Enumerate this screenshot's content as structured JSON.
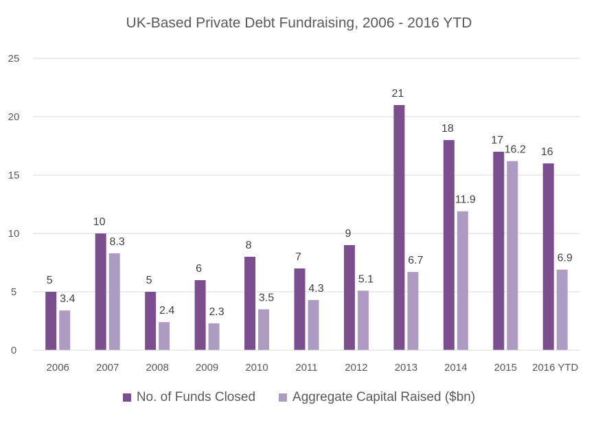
{
  "chart_data": {
    "type": "bar",
    "title": "UK-Based Private Debt Fundraising, 2006 - 2016 YTD",
    "xlabel": "",
    "ylabel": "",
    "categories": [
      "2006",
      "2007",
      "2008",
      "2009",
      "2010",
      "2011",
      "2012",
      "2013",
      "2014",
      "2015",
      "2016 YTD"
    ],
    "series": [
      {
        "name": "No. of Funds Closed",
        "color": "#7b4f8e",
        "values": [
          5,
          10,
          5,
          6,
          8,
          7,
          9,
          21,
          18,
          17,
          16
        ]
      },
      {
        "name": "Aggregate Capital Raised ($bn)",
        "color": "#ad9bc2",
        "values": [
          3.4,
          8.3,
          2.4,
          2.3,
          3.5,
          4.3,
          5.1,
          6.7,
          11.9,
          16.2,
          6.9
        ]
      }
    ],
    "ylim": [
      0,
      25
    ],
    "yticks": [
      "0",
      "5",
      "10",
      "15",
      "20",
      "25"
    ],
    "grid": true,
    "legend_position": "bottom"
  }
}
